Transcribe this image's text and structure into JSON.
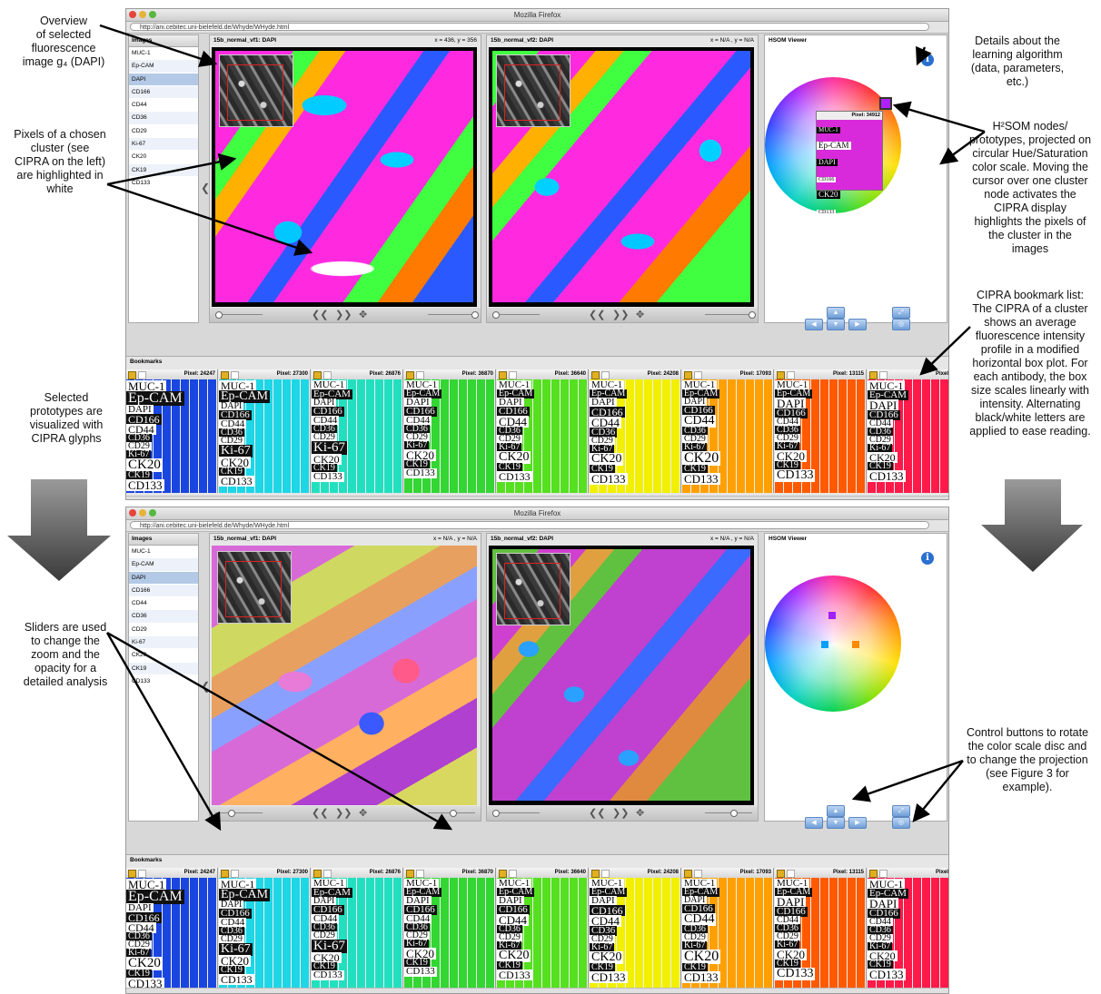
{
  "window": {
    "title": "Mozilla Firefox",
    "url": "http://ani.cebitec.uni-bielefeld.de/Whyde/WHyde.html"
  },
  "image_list": {
    "header": "Images",
    "items": [
      "MUC-1",
      "Ep-CAM",
      "DAPI",
      "CD166",
      "CD44",
      "CD36",
      "CD29",
      "Ki-67",
      "CK20",
      "CK19",
      "CD133"
    ],
    "selected": "DAPI"
  },
  "viewers": [
    {
      "title": "15b_normal_vf1: DAPI",
      "coords_top": "x = 436, y = 356",
      "coords_bottom": "x = N/A , y = N/A"
    },
    {
      "title": "15b_normal_vf2: DAPI",
      "coords_top": "x = N/A , y = N/A",
      "coords_bottom": "x = N/A , y = N/A"
    }
  ],
  "hsom": {
    "header": "HSOM Viewer",
    "info_icon": "i",
    "tooltip_pixel": "Pixel: 34912",
    "tooltip_labels": [
      "MUC-1",
      "Ep-CAM",
      "DAPI",
      "CD166",
      "CD44",
      "CD36",
      "CD29",
      "Ki-67",
      "CK20",
      "CK19",
      "CD133"
    ]
  },
  "bookmarks": {
    "header": "Bookmarks",
    "glyphs": [
      {
        "pixel": "Pixel: 24247",
        "color": "#1a46e0"
      },
      {
        "pixel": "Pixel: 27300",
        "color": "#1ed6e6"
      },
      {
        "pixel": "Pixel: 26876",
        "color": "#22e0bf"
      },
      {
        "pixel": "Pixel: 36870",
        "color": "#33d633"
      },
      {
        "pixel": "Pixel: 36640",
        "color": "#55e020"
      },
      {
        "pixel": "Pixel: 24208",
        "color": "#f2f000"
      },
      {
        "pixel": "Pixel: 17093",
        "color": "#ffa000"
      },
      {
        "pixel": "Pixel: 13115",
        "color": "#ff5a00"
      },
      {
        "pixel": "Pixel: 2(",
        "color": "#ff1a4a"
      }
    ],
    "labels": [
      "MUC-1",
      "Ep-CAM",
      "DAPI",
      "CD166",
      "CD44",
      "CD36",
      "CD29",
      "Ki-67",
      "CK20",
      "CK19",
      "CD133"
    ]
  },
  "annotations": {
    "overview": "Overview\nof selected\nfluorescence\nimage g₄ (DAPI)",
    "pixels_cluster": "Pixels of a chosen\ncluster (see\nCIPRA on the left)\nare highlighted in\nwhite",
    "details": "Details about the\nlearning algorithm\n(data, parameters,\netc.)",
    "h2som": "H²SOM nodes/\nprototypes, projected on\ncircular Hue/Saturation\ncolor scale. Moving the\ncursor over one cluster\nnode activates the\nCIPRA display\nhighlights the pixels of\nthe cluster in the\nimages",
    "cipra_list": "CIPRA bookmark list:\nThe CIPRA of a cluster\nshows an average\nfluorescence intensity\nprofile in a modified\nhorizontal box plot. For\neach antibody, the box\nsize scales linearly with\nintensity. Alternating\nblack/white letters are\napplied to ease reading.",
    "selected_prototypes": "Selected\nprototypes are\nvisualized with\nCIPRA glyphs",
    "sliders": "Sliders are used\nto change the\nzoom and the\nopacity for a\ndetailed analysis",
    "control_buttons": "Control buttons to rotate\nthe color scale disc and\nto change the projection\n(see Figure 3 for\nexample)."
  }
}
